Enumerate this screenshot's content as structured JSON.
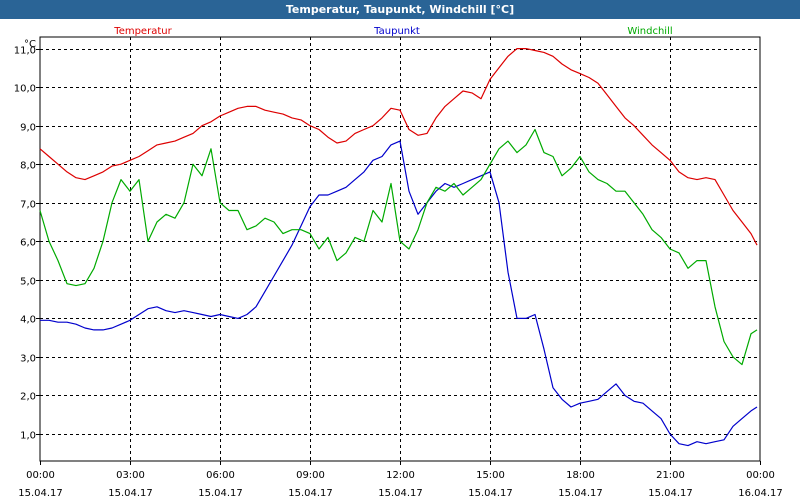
{
  "window": {
    "title": "Temperatur, Taupunkt, Windchill [°C]"
  },
  "chart_data": {
    "type": "line",
    "title": "Temperatur, Taupunkt, Windchill [°C]",
    "ylabel": "°C",
    "ylim": [
      0.3,
      11.3
    ],
    "yticks": [
      1.0,
      2.0,
      3.0,
      4.0,
      5.0,
      6.0,
      7.0,
      8.0,
      9.0,
      10.0,
      11.0
    ],
    "ytick_labels": [
      "1,0",
      "2,0",
      "3,0",
      "4,0",
      "5,0",
      "6,0",
      "7,0",
      "8,0",
      "9,0",
      "10,0",
      "11,0"
    ],
    "xlim": [
      0,
      24
    ],
    "xticks": [
      0,
      3,
      6,
      9,
      12,
      15,
      18,
      21,
      24
    ],
    "xtick_times": [
      "00:00",
      "03:00",
      "06:00",
      "09:00",
      "12:00",
      "15:00",
      "18:00",
      "21:00",
      "00:00"
    ],
    "xtick_dates": [
      "15.04.17",
      "15.04.17",
      "15.04.17",
      "15.04.17",
      "15.04.17",
      "15.04.17",
      "15.04.17",
      "15.04.17",
      "16.04.17"
    ],
    "grid": true,
    "series": [
      {
        "name": "Temperatur",
        "color": "#dd0000",
        "x": [
          0,
          0.3,
          0.6,
          0.9,
          1.2,
          1.5,
          1.8,
          2.1,
          2.4,
          2.7,
          3.0,
          3.3,
          3.6,
          3.9,
          4.2,
          4.5,
          4.8,
          5.1,
          5.4,
          5.7,
          6.0,
          6.3,
          6.6,
          6.9,
          7.2,
          7.5,
          7.8,
          8.1,
          8.4,
          8.7,
          9.0,
          9.3,
          9.6,
          9.9,
          10.2,
          10.5,
          10.8,
          11.1,
          11.4,
          11.7,
          12.0,
          12.3,
          12.6,
          12.9,
          13.2,
          13.5,
          13.8,
          14.1,
          14.4,
          14.7,
          15.0,
          15.3,
          15.6,
          15.9,
          16.2,
          16.5,
          16.8,
          17.1,
          17.4,
          17.7,
          18.0,
          18.3,
          18.6,
          18.9,
          19.2,
          19.5,
          19.8,
          20.1,
          20.4,
          20.7,
          21.0,
          21.3,
          21.6,
          21.9,
          22.2,
          22.5,
          22.8,
          23.1,
          23.4,
          23.7,
          23.9
        ],
        "y": [
          8.4,
          8.2,
          8.0,
          7.8,
          7.65,
          7.6,
          7.7,
          7.8,
          7.95,
          8.0,
          8.1,
          8.2,
          8.35,
          8.5,
          8.55,
          8.6,
          8.7,
          8.8,
          9.0,
          9.1,
          9.25,
          9.35,
          9.45,
          9.5,
          9.5,
          9.4,
          9.35,
          9.3,
          9.2,
          9.15,
          9.0,
          8.9,
          8.7,
          8.55,
          8.6,
          8.8,
          8.9,
          9.0,
          9.2,
          9.45,
          9.4,
          8.9,
          8.75,
          8.8,
          9.2,
          9.5,
          9.7,
          9.9,
          9.85,
          9.7,
          10.2,
          10.5,
          10.8,
          11.0,
          11.0,
          10.95,
          10.9,
          10.8,
          10.6,
          10.45,
          10.35,
          10.25,
          10.1,
          9.8,
          9.5,
          9.2,
          9.0,
          8.75,
          8.5,
          8.3,
          8.1,
          7.8,
          7.65,
          7.6,
          7.65,
          7.6,
          7.2,
          6.8,
          6.5,
          6.2,
          5.9
        ]
      },
      {
        "name": "Taupunkt",
        "color": "#0000cc",
        "x": [
          0,
          0.3,
          0.6,
          0.9,
          1.2,
          1.5,
          1.8,
          2.1,
          2.4,
          2.7,
          3.0,
          3.3,
          3.6,
          3.9,
          4.2,
          4.5,
          4.8,
          5.1,
          5.4,
          5.7,
          6.0,
          6.3,
          6.6,
          6.9,
          7.2,
          7.5,
          7.8,
          8.1,
          8.4,
          8.7,
          9.0,
          9.3,
          9.6,
          9.9,
          10.2,
          10.5,
          10.8,
          11.1,
          11.4,
          11.7,
          12.0,
          12.3,
          12.6,
          12.9,
          13.2,
          13.5,
          13.8,
          14.1,
          14.4,
          14.7,
          15.0,
          15.3,
          15.6,
          15.9,
          16.2,
          16.5,
          16.8,
          17.1,
          17.4,
          17.7,
          18.0,
          18.3,
          18.6,
          18.9,
          19.2,
          19.5,
          19.8,
          20.1,
          20.4,
          20.7,
          21.0,
          21.3,
          21.6,
          21.9,
          22.2,
          22.5,
          22.8,
          23.1,
          23.4,
          23.7,
          23.9
        ],
        "y": [
          3.95,
          3.95,
          3.9,
          3.9,
          3.85,
          3.75,
          3.7,
          3.7,
          3.75,
          3.85,
          3.95,
          4.1,
          4.25,
          4.3,
          4.2,
          4.15,
          4.2,
          4.15,
          4.1,
          4.05,
          4.1,
          4.05,
          4.0,
          4.1,
          4.3,
          4.7,
          5.1,
          5.5,
          5.9,
          6.4,
          6.9,
          7.2,
          7.2,
          7.3,
          7.4,
          7.6,
          7.8,
          8.1,
          8.2,
          8.5,
          8.6,
          7.3,
          6.7,
          7.0,
          7.3,
          7.5,
          7.4,
          7.5,
          7.6,
          7.7,
          7.8,
          7.0,
          5.2,
          4.0,
          4.0,
          4.1,
          3.2,
          2.2,
          1.9,
          1.7,
          1.8,
          1.85,
          1.9,
          2.1,
          2.3,
          2.0,
          1.85,
          1.8,
          1.6,
          1.4,
          1.0,
          0.75,
          0.7,
          0.8,
          0.75,
          0.8,
          0.85,
          1.2,
          1.4,
          1.6,
          1.7
        ]
      },
      {
        "name": "Windchill",
        "color": "#00aa00",
        "x": [
          0,
          0.3,
          0.6,
          0.9,
          1.2,
          1.5,
          1.8,
          2.1,
          2.4,
          2.7,
          3.0,
          3.3,
          3.6,
          3.9,
          4.2,
          4.5,
          4.8,
          5.1,
          5.4,
          5.7,
          6.0,
          6.3,
          6.6,
          6.9,
          7.2,
          7.5,
          7.8,
          8.1,
          8.4,
          8.7,
          9.0,
          9.3,
          9.6,
          9.9,
          10.2,
          10.5,
          10.8,
          11.1,
          11.4,
          11.7,
          12.0,
          12.3,
          12.6,
          12.9,
          13.2,
          13.5,
          13.8,
          14.1,
          14.4,
          14.7,
          15.0,
          15.3,
          15.6,
          15.9,
          16.2,
          16.5,
          16.8,
          17.1,
          17.4,
          17.7,
          18.0,
          18.3,
          18.6,
          18.9,
          19.2,
          19.5,
          19.8,
          20.1,
          20.4,
          20.7,
          21.0,
          21.3,
          21.6,
          21.9,
          22.2,
          22.5,
          22.8,
          23.1,
          23.4,
          23.7,
          23.9
        ],
        "y": [
          6.8,
          6.0,
          5.5,
          4.9,
          4.85,
          4.9,
          5.3,
          6.0,
          7.0,
          7.6,
          7.3,
          7.6,
          6.0,
          6.5,
          6.7,
          6.6,
          7.0,
          8.0,
          7.7,
          8.4,
          7.0,
          6.8,
          6.8,
          6.3,
          6.4,
          6.6,
          6.5,
          6.2,
          6.3,
          6.3,
          6.2,
          5.8,
          6.1,
          5.5,
          5.7,
          6.1,
          6.0,
          6.8,
          6.5,
          7.5,
          6.0,
          5.8,
          6.3,
          7.0,
          7.4,
          7.3,
          7.5,
          7.2,
          7.4,
          7.6,
          8.0,
          8.4,
          8.6,
          8.3,
          8.5,
          8.9,
          8.3,
          8.2,
          7.7,
          7.9,
          8.2,
          7.8,
          7.6,
          7.5,
          7.3,
          7.3,
          7.0,
          6.7,
          6.3,
          6.1,
          5.8,
          5.7,
          5.3,
          5.5,
          5.5,
          4.3,
          3.4,
          3.0,
          2.8,
          3.6,
          3.7
        ]
      }
    ]
  }
}
